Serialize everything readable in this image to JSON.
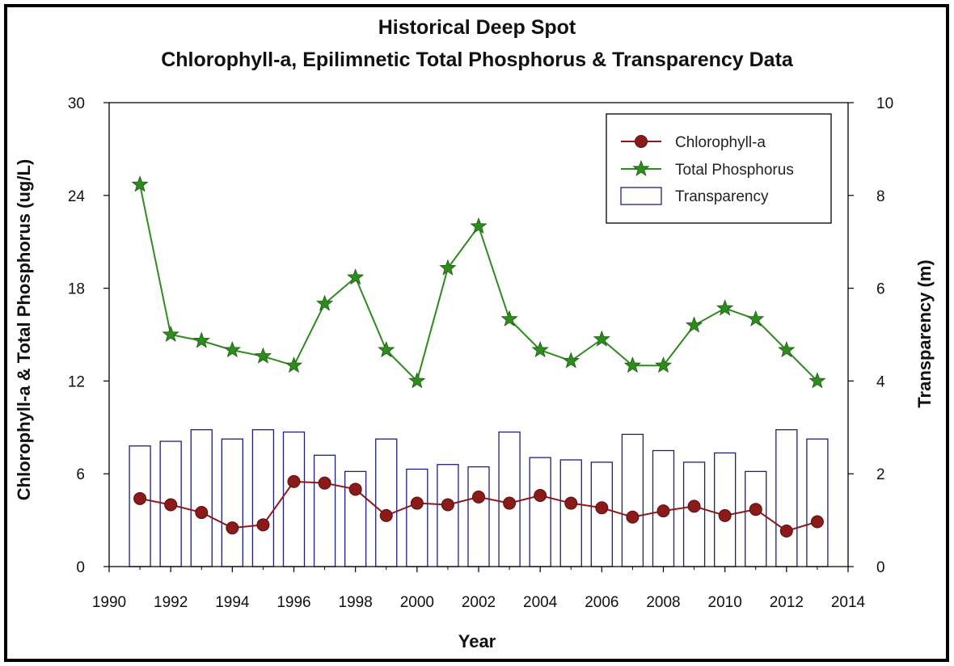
{
  "chart_data": {
    "type": "line",
    "title": "Historical Deep Spot",
    "subtitle": "Chlorophyll-a, Epilimnetic Total Phosphorus & Transparency Data",
    "xlabel": "Year",
    "ylabel_left": "Chlorophyll-a & Total Phosphorus (ug/L)",
    "ylabel_right": "Transparency (m)",
    "xlim": [
      1990,
      2014
    ],
    "xticks": [
      "1990",
      "1992",
      "1994",
      "1996",
      "1998",
      "2000",
      "2002",
      "2004",
      "2006",
      "2008",
      "2010",
      "2012",
      "2014"
    ],
    "ylim_left": [
      0,
      30
    ],
    "yticks_left": [
      "0",
      "6",
      "12",
      "18",
      "24",
      "30"
    ],
    "ylim_right": [
      0,
      10
    ],
    "yticks_right": [
      "0",
      "2",
      "4",
      "6",
      "8",
      "10"
    ],
    "grid": false,
    "legend_position": "top-right",
    "x": [
      1991,
      1992,
      1993,
      1994,
      1995,
      1996,
      1997,
      1998,
      1999,
      2000,
      2001,
      2002,
      2003,
      2004,
      2005,
      2006,
      2007,
      2008,
      2009,
      2010,
      2011,
      2012,
      2013
    ],
    "series": [
      {
        "name": "Chlorophyll-a",
        "kind": "line",
        "axis": "left",
        "color": "#8B1A1A",
        "marker": "circle",
        "values": [
          4.4,
          4.0,
          3.5,
          2.5,
          2.7,
          5.5,
          5.4,
          5.0,
          3.3,
          4.1,
          4.0,
          4.5,
          4.1,
          4.6,
          4.1,
          3.8,
          3.2,
          3.6,
          3.9,
          3.3,
          3.7,
          2.3,
          2.9
        ]
      },
      {
        "name": "Total Phosphorus",
        "kind": "line",
        "axis": "left",
        "color": "#2E8B1E",
        "marker": "star",
        "values": [
          24.7,
          15.0,
          14.6,
          14.0,
          13.6,
          13.0,
          17.0,
          18.7,
          14.0,
          12.0,
          19.3,
          22.0,
          16.0,
          14.0,
          13.3,
          14.7,
          13.0,
          13.0,
          15.6,
          16.7,
          16.0,
          14.0,
          12.0
        ]
      },
      {
        "name": "Transparency",
        "kind": "bar",
        "axis": "right",
        "color": "#1F1F7A",
        "values": [
          2.6,
          2.7,
          2.95,
          2.75,
          2.95,
          2.9,
          2.4,
          2.05,
          2.75,
          2.1,
          2.2,
          2.15,
          2.9,
          2.35,
          2.3,
          2.25,
          2.85,
          2.5,
          2.25,
          2.45,
          2.05,
          2.95,
          2.75
        ]
      }
    ]
  }
}
